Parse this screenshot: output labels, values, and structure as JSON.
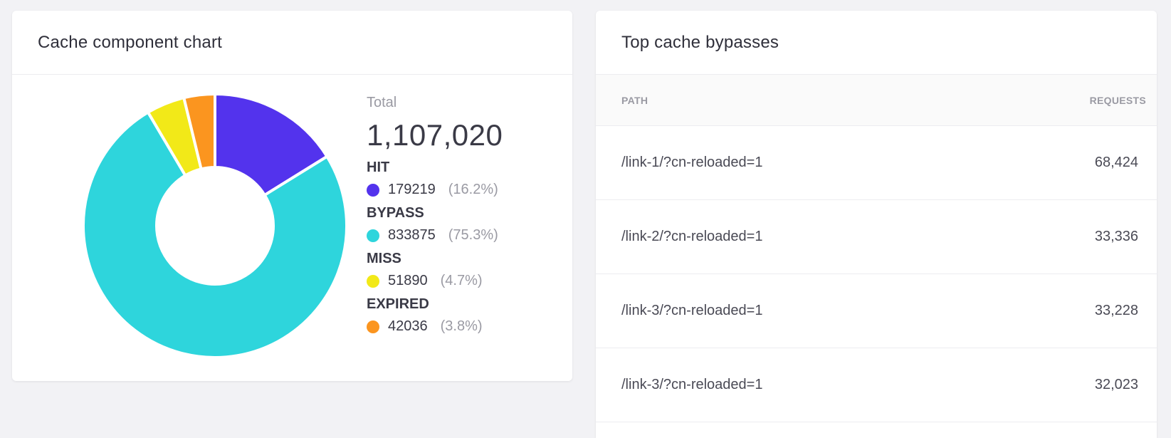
{
  "chart_card": {
    "title": "Cache component chart",
    "total_label": "Total",
    "total_value": "1,107,020"
  },
  "chart_data": {
    "type": "pie",
    "series": [
      {
        "name": "HIT",
        "value": 179219,
        "percent_label": "(16.2%)",
        "color": "#5333ed"
      },
      {
        "name": "BYPASS",
        "value": 833875,
        "percent_label": "(75.3%)",
        "color": "#2ed5dc"
      },
      {
        "name": "MISS",
        "value": 51890,
        "percent_label": "(4.7%)",
        "color": "#f2e918"
      },
      {
        "name": "EXPIRED",
        "value": 42036,
        "percent_label": "(3.8%)",
        "color": "#fb951f"
      }
    ]
  },
  "table_card": {
    "title": "Top cache bypasses",
    "columns": {
      "path": "PATH",
      "requests": "REQUESTS"
    },
    "rows": [
      {
        "path": "/link-1/?cn-reloaded=1",
        "requests": "68,424"
      },
      {
        "path": "/link-2/?cn-reloaded=1",
        "requests": "33,336"
      },
      {
        "path": "/link-3/?cn-reloaded=1",
        "requests": "33,228"
      },
      {
        "path": "/link-3/?cn-reloaded=1",
        "requests": "32,023"
      }
    ]
  }
}
